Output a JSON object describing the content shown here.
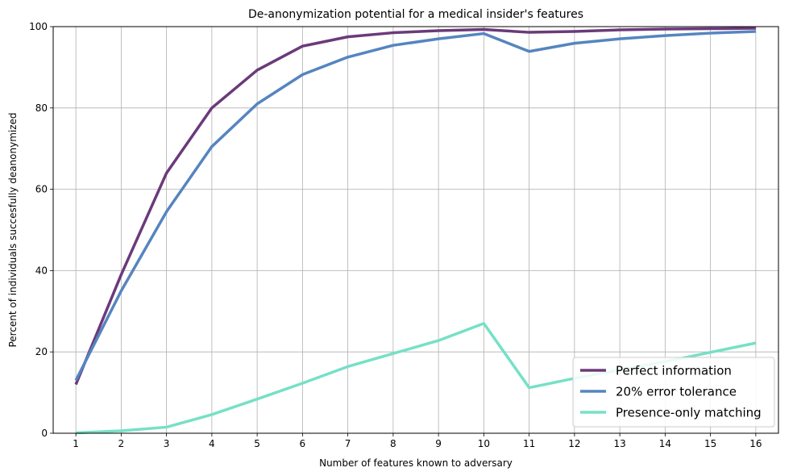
{
  "chart_data": {
    "type": "line",
    "title": "De-anonymization potential for a medical insider's features",
    "xlabel": "Number of features known to adversary",
    "ylabel": "Percent of individuals succesfully deanonymized",
    "x": [
      1,
      2,
      3,
      4,
      5,
      6,
      7,
      8,
      9,
      10,
      11,
      12,
      13,
      14,
      15,
      16
    ],
    "xlim": [
      0.5,
      16.5
    ],
    "ylim": [
      0,
      100
    ],
    "yticks": [
      0,
      20,
      40,
      60,
      80,
      100
    ],
    "grid": true,
    "legend_position": "lower-right",
    "series": [
      {
        "name": "Perfect information",
        "color": "#6b3a7a",
        "values": [
          12,
          39,
          64,
          80,
          89.3,
          95.2,
          97.5,
          98.5,
          99.0,
          99.3,
          98.6,
          98.8,
          99.2,
          99.4,
          99.5,
          99.6
        ]
      },
      {
        "name": "20% error tolerance",
        "color": "#5585bf",
        "values": [
          13,
          35,
          54.5,
          70.5,
          81,
          88.2,
          92.5,
          95.4,
          97.0,
          98.3,
          93.9,
          95.9,
          97.0,
          97.8,
          98.4,
          98.8
        ]
      },
      {
        "name": "Presence-only matching",
        "color": "#76e0c7",
        "values": [
          0.1,
          0.6,
          1.5,
          4.6,
          8.4,
          12.3,
          16.4,
          19.6,
          22.8,
          27,
          11.2,
          13.5,
          15.6,
          17.6,
          19.9,
          22.2
        ]
      }
    ]
  }
}
